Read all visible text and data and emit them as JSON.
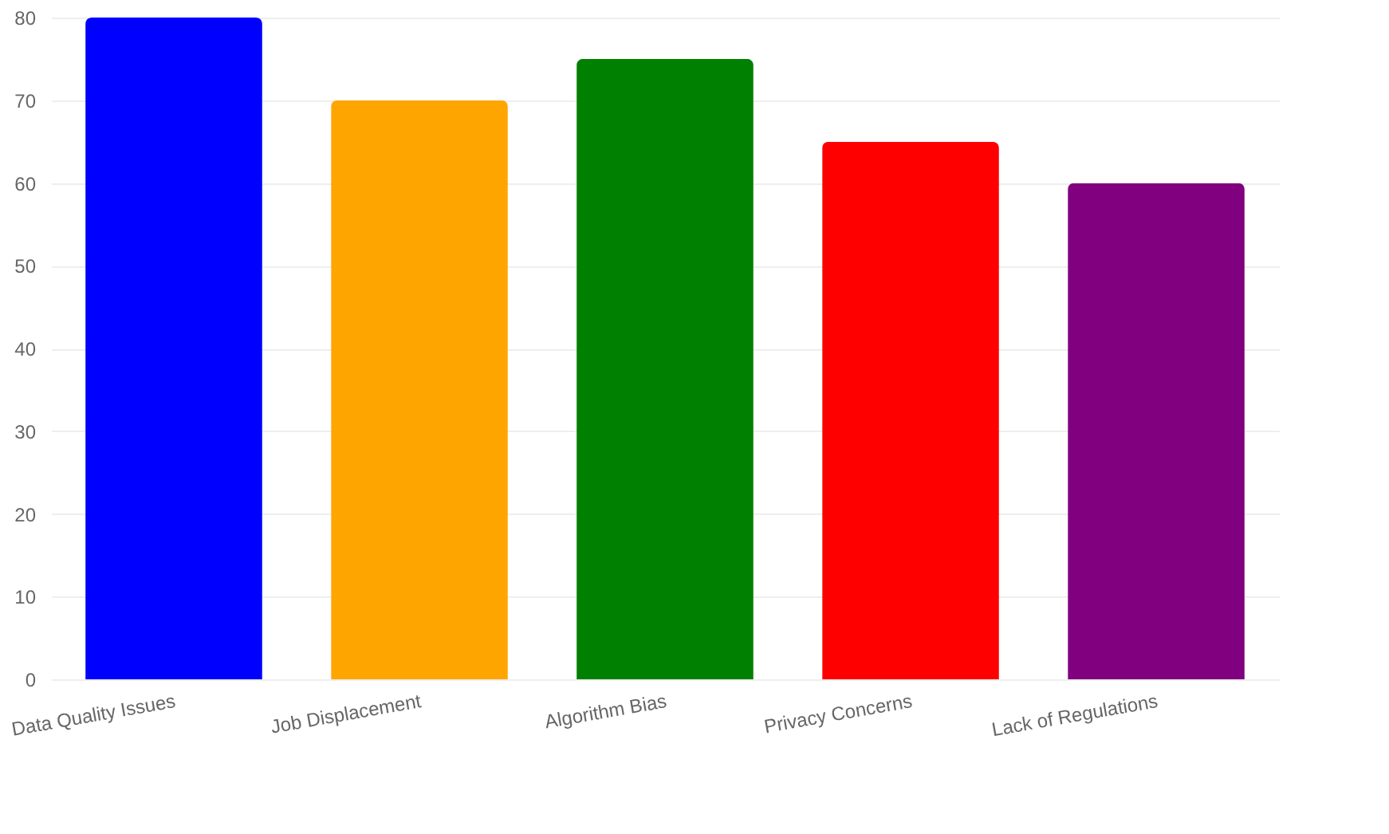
{
  "chart_data": {
    "type": "bar",
    "categories": [
      "Data Quality Issues",
      "Job Displacement",
      "Algorithm Bias",
      "Privacy Concerns",
      "Lack of Regulations"
    ],
    "values": [
      80,
      70,
      75,
      65,
      60
    ],
    "colors": [
      "#0000ff",
      "#ffa500",
      "#008000",
      "#ff0000",
      "#800080"
    ],
    "ylim": [
      0,
      80
    ],
    "yticks": [
      0,
      10,
      20,
      30,
      40,
      50,
      60,
      70,
      80
    ],
    "grid": "y",
    "legend": false
  }
}
